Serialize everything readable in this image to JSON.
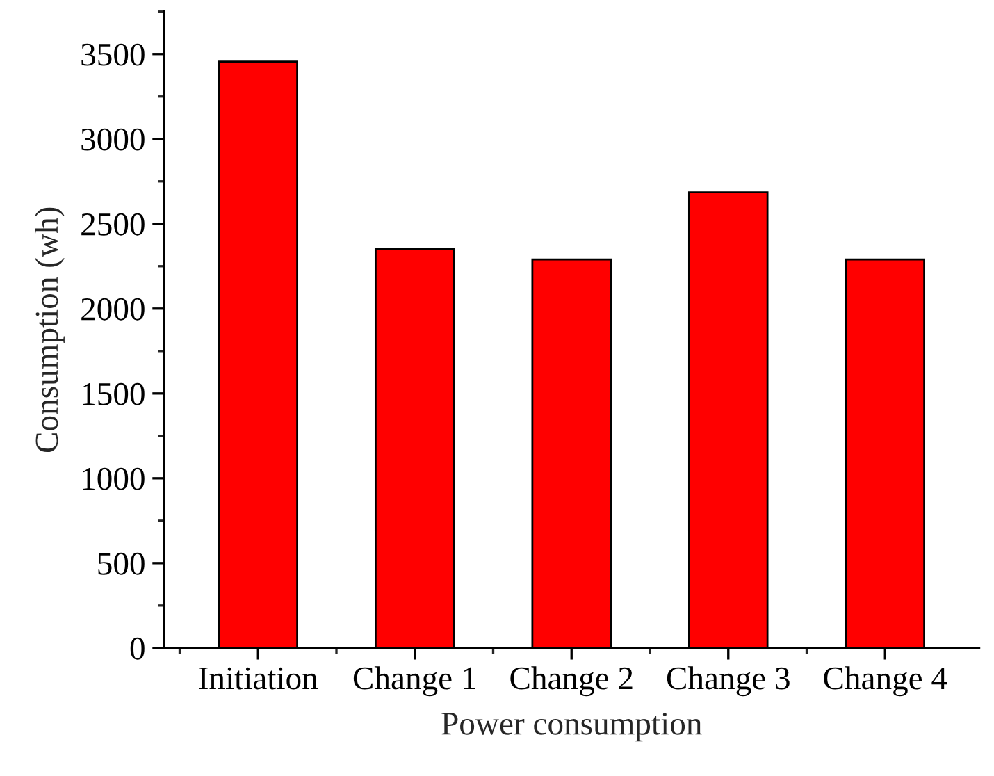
{
  "chart_data": {
    "type": "bar",
    "xlabel": "Power consumption",
    "ylabel": "Consumption (wh)",
    "categories": [
      "Initiation",
      "Change 1",
      "Change 2",
      "Change 3",
      "Change 4"
    ],
    "values": [
      3455,
      2350,
      2290,
      2685,
      2290
    ],
    "color": "#ff0000",
    "ylim": [
      0,
      3750
    ],
    "yticks": [
      0,
      500,
      1000,
      1500,
      2000,
      2500,
      3000,
      3500
    ],
    "grid": false
  }
}
